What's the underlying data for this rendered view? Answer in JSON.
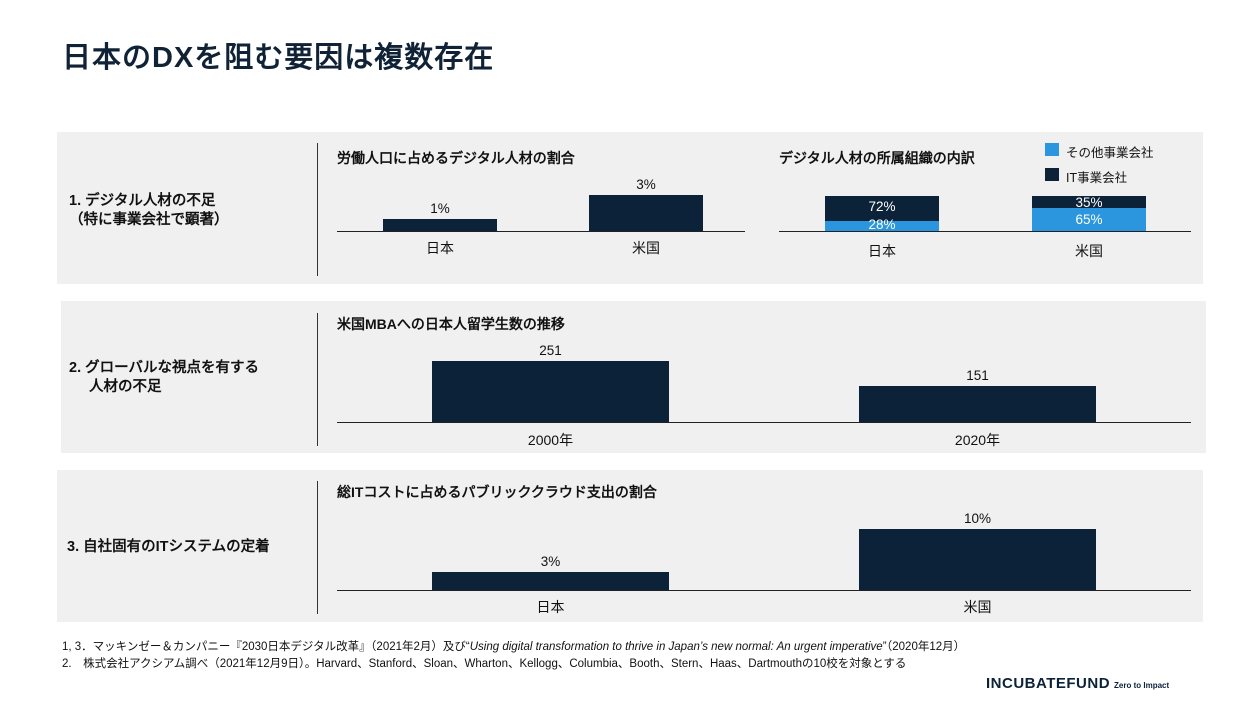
{
  "title": "日本のDXを阻む要因は複数存在",
  "sections": [
    {
      "label": [
        "1. デジタル人材の不足",
        "（特に事業会社で顕著）"
      ],
      "charts": [
        {
          "title": "労働人口に占めるデジタル人材の割合",
          "categories": [
            "日本",
            "米国"
          ],
          "value_labels": [
            "1%",
            "3%"
          ]
        },
        {
          "title": "デジタル人材の所属組織の内訳",
          "categories": [
            "日本",
            "米国"
          ],
          "legend": [
            "その他事業会社",
            "IT事業会社"
          ],
          "it_labels": [
            "72%",
            "35%"
          ],
          "other_labels": [
            "28%",
            "65%"
          ]
        }
      ]
    },
    {
      "label": [
        "2. グローバルな視点を有する",
        "人材の不足"
      ],
      "chart": {
        "title": "米国MBAへの日本人留学生数の推移",
        "categories": [
          "2000年",
          "2020年"
        ],
        "value_labels": [
          "251",
          "151"
        ]
      }
    },
    {
      "label": [
        "3. 自社固有のITシステムの定着"
      ],
      "chart": {
        "title": "総ITコストに占めるパブリッククラウド支出の割合",
        "categories": [
          "日本",
          "米国"
        ],
        "value_labels": [
          "3%",
          "10%"
        ]
      }
    }
  ],
  "chart_data": [
    {
      "type": "bar",
      "title": "労働人口に占めるデジタル人材の割合",
      "categories": [
        "日本",
        "米国"
      ],
      "values": [
        1,
        3
      ],
      "unit": "%"
    },
    {
      "type": "bar",
      "title": "デジタル人材の所属組織の内訳",
      "stacked": true,
      "categories": [
        "日本",
        "米国"
      ],
      "series": [
        {
          "name": "その他事業会社",
          "values": [
            28,
            65
          ],
          "color": "#2b96dd"
        },
        {
          "name": "IT事業会社",
          "values": [
            72,
            35
          ],
          "color": "#0b2239"
        }
      ],
      "unit": "%"
    },
    {
      "type": "bar",
      "title": "米国MBAへの日本人留学生数の推移",
      "categories": [
        "2000年",
        "2020年"
      ],
      "values": [
        251,
        151
      ]
    },
    {
      "type": "bar",
      "title": "総ITコストに占めるパブリッククラウド支出の割合",
      "categories": [
        "日本",
        "米国"
      ],
      "values": [
        3,
        10
      ],
      "unit": "%"
    }
  ],
  "footnotes": {
    "note1_prefix": "1, 3．マッキンゼー＆カンパニー『2030日本デジタル改革』（2021年2月）及び“",
    "note1_italic": "Using digital transformation to thrive in Japan’s new normal: An urgent imperative",
    "note1_suffix": "”（2020年12月）",
    "note2": "2.　株式会社アクシアム調べ（2021年12月9日）。Harvard、Stanford、Sloan、Wharton、Kellogg、Columbia、Booth、Stern、Haas、Dartmouthの10校を対象とする"
  },
  "logo": {
    "name": "INCUBATEFUND",
    "tagline": "Zero to Impact"
  },
  "colors": {
    "dark_bar": "#0b2239",
    "light_bar": "#2b96dd",
    "panel_bg": "#f0f0f0",
    "title": "#0f2236"
  }
}
